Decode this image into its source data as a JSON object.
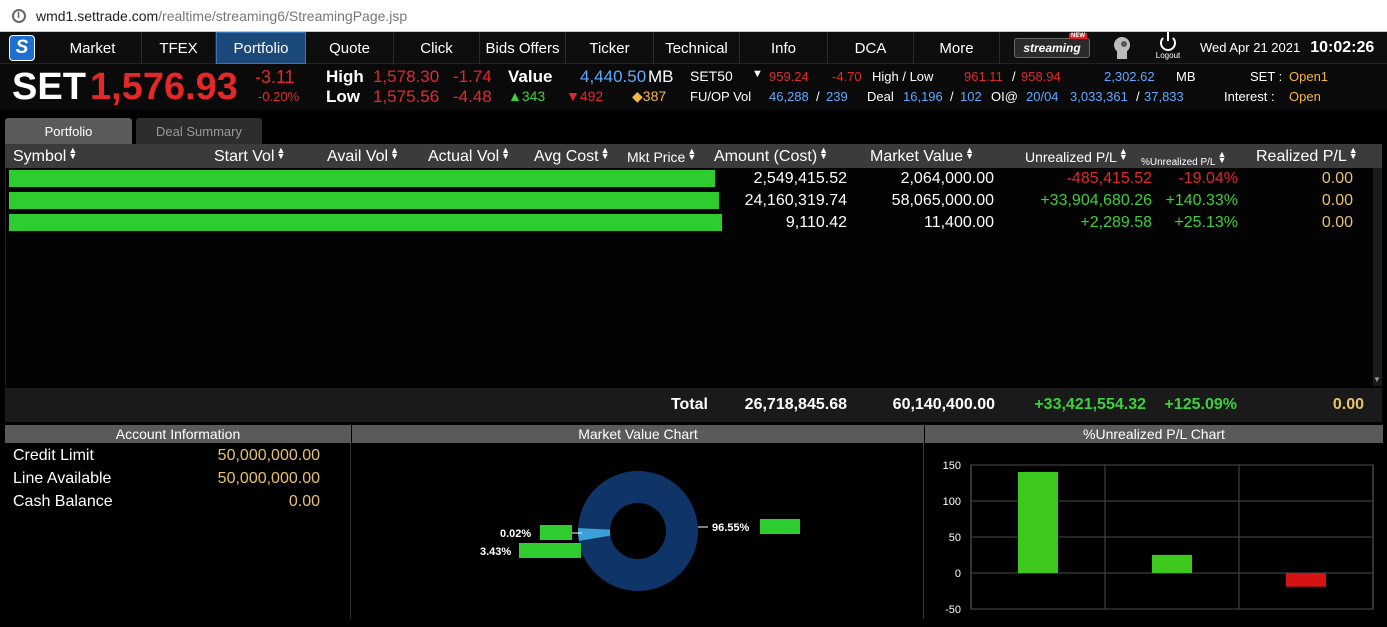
{
  "browser": {
    "url_host": "wmd1.settrade.com",
    "url_path": "/realtime/streaming6/StreamingPage.jsp"
  },
  "nav": {
    "items": [
      "Market",
      "TFEX",
      "Portfolio",
      "Quote",
      "Click",
      "Bids Offers",
      "Ticker",
      "Technical",
      "Info",
      "DCA",
      "More"
    ],
    "active": "Portfolio",
    "streaming_logo": "streaming",
    "streaming_badge": "NEW",
    "logout_label": "Logout",
    "date": "Wed Apr 21 2021",
    "time": "10:02:26"
  },
  "ticker": {
    "index_name": "SET",
    "index_value": "1,576.93",
    "change": "-3.11",
    "change_pct": "-0.20%",
    "high_label": "High",
    "high_value": "1,578.30",
    "high_change": "-1.74",
    "low_label": "Low",
    "low_value": "1,575.56",
    "low_change": "-4.48",
    "value_label": "Value",
    "value": "4,440.50",
    "value_unit": "MB",
    "adv_up": "343",
    "adv_down": "492",
    "adv_unch": "387",
    "set50_label": "SET50",
    "set50_value": "959.24",
    "set50_change": "-4.70",
    "set50_hl_label": "High / Low",
    "set50_high": "961.11",
    "set50_sep": "/",
    "set50_low": "958.94",
    "set50_value_mb": "2,302.62",
    "set50_mb": "MB",
    "futop_label": "FU/OP Vol",
    "futop_vol1": "46,288",
    "futop_vol2": "239",
    "deal_label": "Deal",
    "deal1": "16,196",
    "deal2": "102",
    "oi_label": "OI@",
    "oi1": "20/04",
    "oi2": "3,033,361",
    "oi3": "37,833",
    "set_status_label": "SET :",
    "set_status": "Open1",
    "interest_label": "Interest :",
    "interest_status": "Open"
  },
  "subtabs": [
    "Portfolio",
    "Deal Summary"
  ],
  "grid": {
    "headers": [
      "Symbol",
      "Start Vol",
      "Avail Vol",
      "Actual Vol",
      "Avg Cost",
      "Mkt Price",
      "Amount (Cost)",
      "Market Value",
      "Unrealized P/L",
      "%Unrealized P/L",
      "Realized P/L"
    ],
    "rows": [
      {
        "amount_cost": "2,549,415.52",
        "market_value": "2,064,000.00",
        "unrealized": "-485,415.52",
        "pct_unrealized": "-19.04%",
        "realized": "0.00",
        "sign": "neg"
      },
      {
        "amount_cost": "24,160,319.74",
        "market_value": "58,065,000.00",
        "unrealized": "+33,904,680.26",
        "pct_unrealized": "+140.33%",
        "realized": "0.00",
        "sign": "pos"
      },
      {
        "amount_cost": "9,110.42",
        "market_value": "11,400.00",
        "unrealized": "+2,289.58",
        "pct_unrealized": "+25.13%",
        "realized": "0.00",
        "sign": "pos"
      }
    ],
    "total": {
      "label": "Total",
      "amount_cost": "26,718,845.68",
      "market_value": "60,140,400.00",
      "unrealized": "+33,421,554.32",
      "pct_unrealized": "+125.09%",
      "realized": "0.00"
    }
  },
  "account": {
    "title": "Account Information",
    "credit_limit_label": "Credit Limit",
    "credit_limit": "50,000,000.00",
    "line_available_label": "Line Available",
    "line_available": "50,000,000.00",
    "cash_balance_label": "Cash Balance",
    "cash_balance": "0.00"
  },
  "market_value_chart": {
    "title": "Market Value Chart",
    "slices": [
      {
        "label": "96.55%",
        "value": 96.55,
        "color": "#0f3468"
      },
      {
        "label": "3.43%",
        "value": 3.43,
        "color": "#3ba0d8"
      },
      {
        "label": "0.02%",
        "value": 0.02,
        "color": "#7fd0ff"
      }
    ]
  },
  "pl_chart": {
    "title": "%Unrealized P/L Chart"
  },
  "chart_data": {
    "type": "bar",
    "categories": [
      "",
      "",
      ""
    ],
    "values": [
      140.33,
      25.13,
      -19.04
    ],
    "colors": [
      "#3cc81c",
      "#3cc81c",
      "#d41414"
    ],
    "title": "%Unrealized P/L Chart",
    "xlabel": "",
    "ylabel": "",
    "ylim": [
      -50,
      150
    ],
    "yticks": [
      "150",
      "100",
      "50",
      "0",
      "-50"
    ],
    "grid": true
  }
}
